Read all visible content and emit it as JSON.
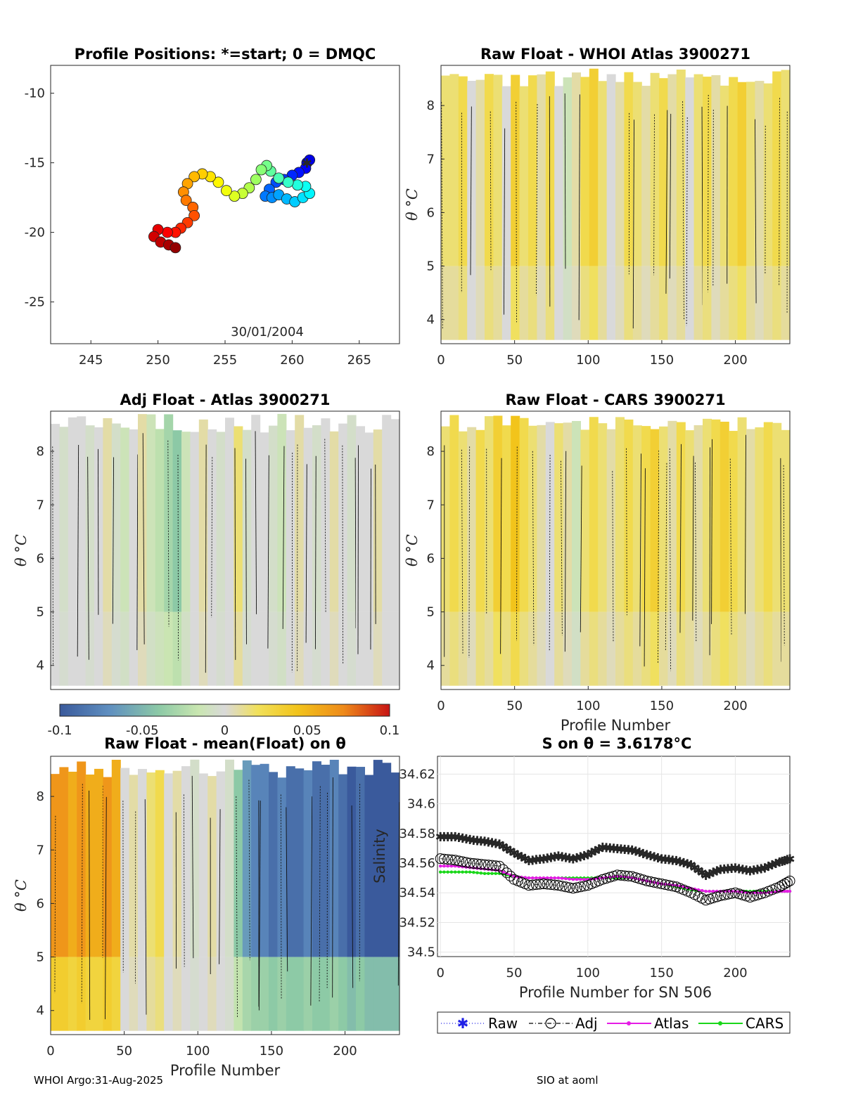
{
  "footer": {
    "left": "WHOI Argo:31-Aug-2025",
    "right": "SIO at aoml"
  },
  "colorbar": {
    "ticks": [
      "-0.1",
      "-0.05",
      "0",
      "0.05",
      "0.1"
    ],
    "colors": [
      "#3a5a9c",
      "#5f8fc0",
      "#8cc9a6",
      "#c9e6b0",
      "#d9d9d9",
      "#f1e05a",
      "#f2c41b",
      "#ee8a1a",
      "#c81414"
    ]
  },
  "chart_data": [
    {
      "id": "positions",
      "type": "scatter",
      "title": "Profile Positions: *=start; 0 = DMQC",
      "xlim": [
        242,
        268
      ],
      "ylim": [
        -28,
        -8
      ],
      "xticks": [
        "245",
        "250",
        "255",
        "260",
        "265"
      ],
      "yticks": [
        "-10",
        "-15",
        "-20",
        "-25"
      ],
      "annotation": "30/01/2004",
      "start": [
        261.1,
        -15.0
      ],
      "track": [
        [
          261.1,
          -15.0
        ],
        [
          261.3,
          -14.8
        ],
        [
          261.0,
          -15.4
        ],
        [
          260.5,
          -15.7
        ],
        [
          260.0,
          -15.9
        ],
        [
          259.4,
          -16.2
        ],
        [
          258.8,
          -16.4
        ],
        [
          258.3,
          -16.9
        ],
        [
          258.0,
          -17.4
        ],
        [
          258.5,
          -17.5
        ],
        [
          259.0,
          -17.3
        ],
        [
          259.6,
          -17.6
        ],
        [
          260.2,
          -17.8
        ],
        [
          260.8,
          -17.5
        ],
        [
          261.3,
          -17.2
        ],
        [
          261.0,
          -16.7
        ],
        [
          260.4,
          -16.6
        ],
        [
          259.7,
          -16.4
        ],
        [
          259.0,
          -16.1
        ],
        [
          258.4,
          -15.6
        ],
        [
          258.1,
          -15.2
        ],
        [
          257.7,
          -15.5
        ],
        [
          257.3,
          -16.2
        ],
        [
          256.8,
          -16.8
        ],
        [
          256.3,
          -17.2
        ],
        [
          255.7,
          -17.4
        ],
        [
          255.1,
          -17.0
        ],
        [
          254.5,
          -16.4
        ],
        [
          253.9,
          -16.0
        ],
        [
          253.3,
          -15.8
        ],
        [
          252.7,
          -16.0
        ],
        [
          252.2,
          -16.5
        ],
        [
          251.9,
          -17.1
        ],
        [
          252.1,
          -17.7
        ],
        [
          252.6,
          -18.2
        ],
        [
          252.7,
          -18.8
        ],
        [
          252.2,
          -19.3
        ],
        [
          251.7,
          -19.7
        ],
        [
          251.3,
          -20.0
        ],
        [
          250.7,
          -20.0
        ],
        [
          250.0,
          -19.8
        ],
        [
          249.7,
          -20.3
        ],
        [
          250.2,
          -20.7
        ],
        [
          250.8,
          -20.9
        ],
        [
          251.3,
          -21.1
        ]
      ]
    },
    {
      "id": "raw-atlas",
      "type": "heatmap",
      "title": "Raw Float - WHOI Atlas  3900271",
      "xlim": [
        0,
        237
      ],
      "ylim": [
        3.55,
        8.75
      ],
      "xticks": [
        "0",
        "50",
        "100",
        "150",
        "200"
      ],
      "yticks": [
        "4",
        "5",
        "6",
        "7",
        "8"
      ],
      "ylabel": "θ °C",
      "xlabel": "",
      "values": [
        0.02,
        0.02,
        0.03,
        0.0,
        0.01,
        0.03,
        0.02,
        0.0,
        0.04,
        0.02,
        0.03,
        0.01,
        0.03,
        0.0,
        -0.02,
        0.01,
        0.03,
        0.04,
        0.02,
        0.0,
        0.01,
        0.03,
        0.02,
        0.01,
        0.02,
        0.03,
        0.01,
        0.02,
        0.0,
        0.02,
        0.03,
        0.01,
        0.02,
        0.03,
        0.04,
        0.02,
        0.01,
        0.02,
        0.03,
        0.02
      ]
    },
    {
      "id": "adj-atlas",
      "type": "heatmap",
      "title": "Adj Float - Atlas  3900271",
      "xlim": [
        0,
        237
      ],
      "ylim": [
        3.55,
        8.75
      ],
      "xticks": [],
      "yticks": [
        "4",
        "5",
        "6",
        "7",
        "8"
      ],
      "ylabel": "θ °C",
      "xlabel": "",
      "values": [
        0.0,
        -0.01,
        0.0,
        0.0,
        -0.01,
        0.0,
        0.01,
        -0.01,
        -0.02,
        0.0,
        0.01,
        -0.02,
        -0.03,
        -0.04,
        -0.05,
        -0.02,
        0.0,
        0.01,
        0.0,
        -0.01,
        0.0,
        0.02,
        -0.01,
        0.0,
        0.0,
        -0.01,
        -0.02,
        0.0,
        0.01,
        0.0,
        -0.01,
        0.0,
        0.01,
        0.0,
        -0.01,
        0.0,
        0.0,
        0.01,
        0.0,
        0.0
      ]
    },
    {
      "id": "raw-cars",
      "type": "heatmap",
      "title": "Raw Float - CARS  3900271",
      "xlim": [
        0,
        237
      ],
      "ylim": [
        3.55,
        8.75
      ],
      "xticks": [
        "0",
        "50",
        "100",
        "150",
        "200"
      ],
      "yticks": [
        "4",
        "5",
        "6",
        "7",
        "8"
      ],
      "ylabel": "θ °C",
      "xlabel": "Profile Number",
      "values": [
        0.02,
        0.03,
        0.02,
        0.01,
        0.03,
        0.02,
        0.04,
        0.03,
        0.05,
        0.03,
        0.02,
        0.01,
        0.0,
        0.02,
        0.01,
        -0.02,
        0.02,
        0.03,
        0.02,
        0.01,
        0.02,
        0.03,
        0.02,
        0.03,
        0.04,
        0.02,
        0.01,
        0.03,
        0.02,
        0.01,
        0.02,
        0.03,
        0.04,
        0.03,
        0.02,
        0.01,
        0.02,
        0.03,
        0.02,
        0.02
      ]
    },
    {
      "id": "raw-mean",
      "type": "heatmap",
      "title": "Raw Float - mean(Float) on θ",
      "xlim": [
        0,
        237
      ],
      "ylim": [
        3.55,
        8.75
      ],
      "xticks": [
        "0",
        "50",
        "100",
        "150",
        "200"
      ],
      "yticks": [
        "4",
        "5",
        "6",
        "7",
        "8"
      ],
      "ylabel": "θ °C",
      "xlabel": "Profile Number",
      "values": [
        0.07,
        0.07,
        0.06,
        0.07,
        0.06,
        0.06,
        0.07,
        0.06,
        0.0,
        0.01,
        0.0,
        0.02,
        0.03,
        0.0,
        0.01,
        0.0,
        -0.01,
        0.0,
        0.01,
        0.0,
        -0.01,
        -0.05,
        -0.07,
        -0.08,
        -0.08,
        -0.09,
        -0.08,
        -0.09,
        -0.09,
        -0.08,
        -0.09,
        -0.09,
        -0.08,
        -0.09,
        -0.1,
        -0.09,
        -0.1,
        -0.1,
        -0.1,
        -0.1
      ]
    },
    {
      "id": "salinity",
      "type": "line",
      "title": "S on θ = 3.6178°C",
      "xlim": [
        -2,
        237
      ],
      "ylim": [
        34.497,
        34.632
      ],
      "xticks": [
        "0",
        "50",
        "100",
        "150",
        "200"
      ],
      "yticks": [
        "34.5",
        "34.52",
        "34.54",
        "34.56",
        "34.58",
        "34.6",
        "34.62"
      ],
      "xlabel": "Profile Number for SN 506",
      "ylabel": "Salinity",
      "x": [
        0,
        10,
        20,
        30,
        40,
        50,
        60,
        70,
        80,
        90,
        100,
        110,
        120,
        130,
        140,
        150,
        160,
        170,
        180,
        190,
        200,
        210,
        220,
        230,
        237
      ],
      "series": [
        {
          "name": "Raw",
          "color": "#1f1fe6",
          "values": [
            34.578,
            34.578,
            34.576,
            34.575,
            34.573,
            34.567,
            34.562,
            34.563,
            34.565,
            34.563,
            34.566,
            34.571,
            34.57,
            34.569,
            34.566,
            34.563,
            34.562,
            34.559,
            34.552,
            34.556,
            34.557,
            34.555,
            34.557,
            34.561,
            34.563
          ]
        },
        {
          "name": "Adj",
          "color": "#000000",
          "values": [
            34.563,
            34.562,
            34.56,
            34.559,
            34.558,
            34.549,
            34.545,
            34.546,
            34.545,
            34.543,
            34.545,
            34.549,
            34.552,
            34.551,
            34.548,
            34.546,
            34.544,
            34.54,
            34.535,
            34.538,
            34.54,
            34.537,
            34.54,
            34.544,
            34.548
          ]
        },
        {
          "name": "Atlas",
          "color": "#e51ce5",
          "values": [
            34.558,
            34.558,
            34.557,
            34.556,
            34.555,
            34.551,
            34.55,
            34.55,
            34.55,
            34.549,
            34.549,
            34.55,
            34.551,
            34.55,
            34.548,
            34.546,
            34.545,
            34.543,
            34.541,
            34.541,
            34.541,
            34.54,
            34.54,
            34.541,
            34.541
          ]
        },
        {
          "name": "CARS",
          "color": "#19d719",
          "values": [
            34.554,
            34.554,
            34.554,
            34.553,
            34.553,
            34.551,
            34.55,
            34.55,
            34.55,
            34.55,
            34.55,
            34.55,
            34.55,
            34.55,
            34.548,
            34.546,
            34.544,
            34.542,
            34.541,
            34.541,
            34.541,
            34.541,
            34.541,
            34.541,
            34.541
          ]
        }
      ]
    }
  ]
}
